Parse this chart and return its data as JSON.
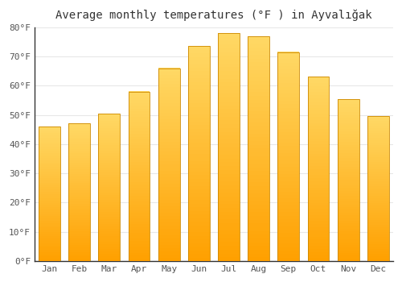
{
  "title": "Average monthly temperatures (°F ) in Ayvalığak",
  "months": [
    "Jan",
    "Feb",
    "Mar",
    "Apr",
    "May",
    "Jun",
    "Jul",
    "Aug",
    "Sep",
    "Oct",
    "Nov",
    "Dec"
  ],
  "values": [
    46,
    47,
    50.5,
    58,
    66,
    73.5,
    78,
    77,
    71.5,
    63,
    55.5,
    49.5
  ],
  "ylim": [
    0,
    80
  ],
  "yticks": [
    0,
    10,
    20,
    30,
    40,
    50,
    60,
    70,
    80
  ],
  "background_color": "#FFFFFF",
  "grid_color": "#E8E8E8",
  "title_fontsize": 10,
  "tick_fontsize": 8,
  "bar_color_bottom": "#FFA000",
  "bar_color_top": "#FFD966",
  "bar_edge_color": "#CC8800",
  "bar_width": 0.72
}
